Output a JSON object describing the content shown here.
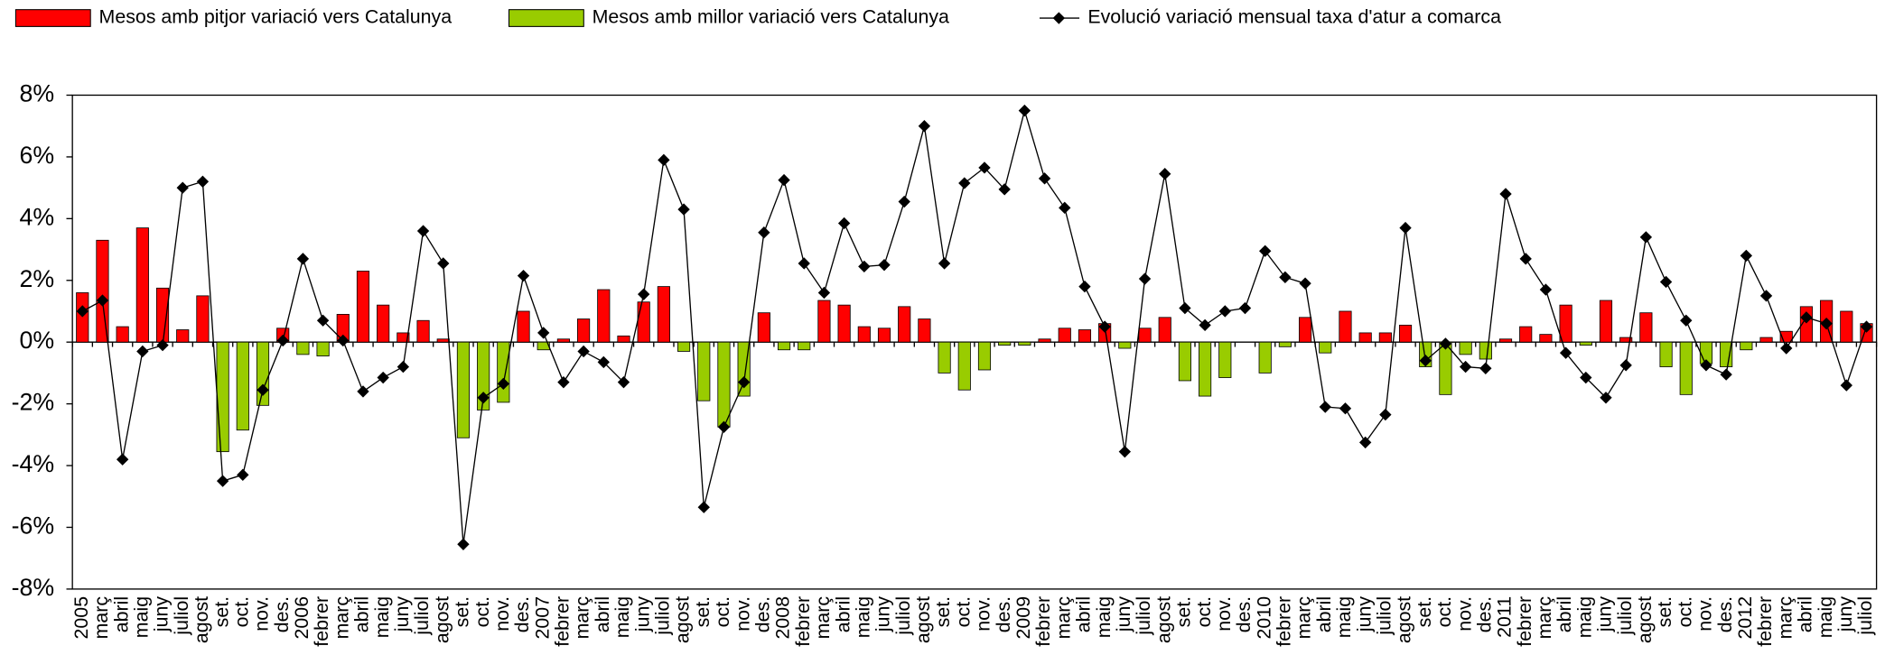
{
  "chart_data": {
    "type": "bar",
    "categories": [
      "2005",
      "març",
      "abril",
      "maig",
      "juny",
      "juliol",
      "agost",
      "set.",
      "oct.",
      "nov.",
      "des.",
      "2006",
      "febrer",
      "març",
      "abril",
      "maig",
      "juny",
      "juliol",
      "agost",
      "set.",
      "oct.",
      "nov.",
      "des.",
      "2007",
      "febrer",
      "març",
      "abril",
      "maig",
      "juny",
      "juliol",
      "agost",
      "set.",
      "oct.",
      "nov.",
      "des.",
      "2008",
      "febrer",
      "març",
      "abril",
      "maig",
      "juny",
      "juliol",
      "agost",
      "set.",
      "oct.",
      "nov.",
      "des.",
      "2009",
      "febrer",
      "març",
      "abril",
      "maig",
      "juny",
      "juliol",
      "agost",
      "set.",
      "oct.",
      "nov.",
      "des.",
      "2010",
      "febrer",
      "març",
      "abril",
      "maig",
      "juny",
      "juliol",
      "agost",
      "set.",
      "oct.",
      "nov.",
      "des.",
      "2011",
      "febrer",
      "març",
      "abril",
      "maig",
      "juny",
      "juliol",
      "agost",
      "set.",
      "oct.",
      "nov.",
      "des.",
      "2012",
      "febrer",
      "març",
      "abril",
      "maig",
      "juny",
      "juliol"
    ],
    "series": [
      {
        "name": "Mesos amb pitjor variació vers Catalunya",
        "color": "#ff0000",
        "type": "bar",
        "values": [
          1.6,
          3.3,
          0.5,
          3.7,
          1.75,
          0.4,
          1.5,
          null,
          null,
          null,
          0.45,
          null,
          null,
          0.9,
          2.3,
          1.2,
          0.3,
          0.7,
          0.1,
          null,
          null,
          null,
          1.0,
          null,
          0.1,
          0.75,
          1.7,
          0.2,
          1.3,
          1.8,
          null,
          null,
          null,
          null,
          0.95,
          null,
          null,
          1.35,
          1.2,
          0.5,
          0.45,
          1.15,
          0.75,
          null,
          null,
          null,
          null,
          null,
          0.1,
          0.45,
          0.4,
          0.6,
          null,
          0.45,
          0.8,
          null,
          null,
          null,
          null,
          null,
          null,
          0.8,
          null,
          1.0,
          0.3,
          0.3,
          0.55,
          null,
          null,
          null,
          null,
          0.1,
          0.5,
          0.25,
          1.2,
          null,
          1.35,
          0.15,
          0.95,
          null,
          null,
          null,
          null,
          null,
          0.15,
          0.35,
          1.15,
          1.35,
          1.0,
          0.6
        ]
      },
      {
        "name": "Mesos amb millor variació vers Catalunya",
        "color": "#99cc00",
        "type": "bar",
        "values": [
          null,
          null,
          null,
          null,
          null,
          null,
          null,
          -3.55,
          -2.85,
          -2.05,
          null,
          -0.4,
          -0.45,
          null,
          null,
          null,
          null,
          null,
          null,
          -3.1,
          -2.2,
          -1.95,
          null,
          -0.25,
          null,
          null,
          null,
          null,
          null,
          null,
          -0.3,
          -1.9,
          -2.75,
          -1.75,
          null,
          -0.25,
          -0.25,
          null,
          null,
          null,
          null,
          null,
          null,
          -1.0,
          -1.55,
          -0.9,
          -0.1,
          -0.1,
          null,
          null,
          null,
          null,
          -0.2,
          null,
          null,
          -1.25,
          -1.75,
          -1.15,
          null,
          -1.0,
          -0.15,
          null,
          -0.35,
          null,
          null,
          null,
          null,
          -0.8,
          -1.7,
          -0.4,
          -0.55,
          null,
          null,
          null,
          null,
          -0.1,
          null,
          null,
          null,
          -0.8,
          -1.7,
          -0.7,
          -0.8,
          -0.25,
          null,
          null,
          null,
          null,
          null,
          null
        ]
      },
      {
        "name": "Evolució variació mensual taxa d'atur a comarca",
        "color": "#000000",
        "type": "line",
        "values": [
          1.0,
          1.35,
          -3.8,
          -0.3,
          -0.1,
          5.0,
          5.2,
          -4.5,
          -4.3,
          -1.55,
          0.05,
          2.7,
          0.7,
          0.05,
          -1.6,
          -1.15,
          -0.8,
          3.6,
          2.55,
          -6.55,
          -1.8,
          -1.35,
          2.15,
          0.3,
          -1.3,
          -0.3,
          -0.65,
          -1.3,
          1.55,
          5.9,
          4.3,
          -5.35,
          -2.75,
          -1.3,
          3.55,
          5.25,
          2.55,
          1.6,
          3.85,
          2.45,
          2.5,
          4.55,
          7.0,
          2.55,
          5.15,
          5.65,
          4.95,
          7.5,
          5.3,
          4.35,
          1.8,
          0.5,
          -3.55,
          2.05,
          5.45,
          1.1,
          0.55,
          1.0,
          1.1,
          2.95,
          2.1,
          1.9,
          -2.1,
          -2.15,
          -3.25,
          -2.35,
          3.7,
          -0.6,
          -0.05,
          -0.8,
          -0.85,
          4.8,
          2.7,
          1.7,
          -0.35,
          -1.15,
          -1.8,
          -0.75,
          3.4,
          1.95,
          0.7,
          -0.75,
          -1.05,
          2.8,
          1.5,
          -0.2,
          0.8,
          0.6,
          -1.4,
          0.5
        ]
      }
    ],
    "ylim": [
      -8,
      8
    ],
    "yticks": [
      {
        "value": -8,
        "label": "-8%"
      },
      {
        "value": -6,
        "label": "-6%"
      },
      {
        "value": -4,
        "label": "-4%"
      },
      {
        "value": -2,
        "label": "-2%"
      },
      {
        "value": 0,
        "label": "0%"
      },
      {
        "value": 2,
        "label": "2%"
      },
      {
        "value": 4,
        "label": "4%"
      },
      {
        "value": 6,
        "label": "6%"
      },
      {
        "value": 8,
        "label": "8%"
      }
    ],
    "legend": "top"
  }
}
